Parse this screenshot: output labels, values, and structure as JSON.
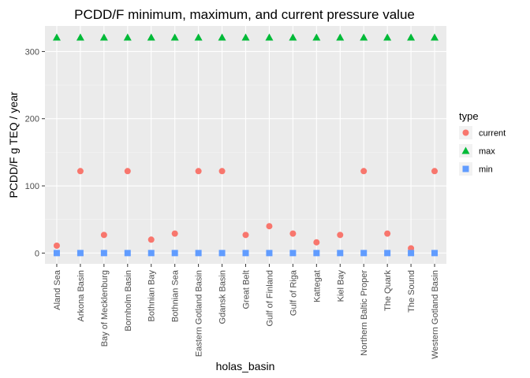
{
  "chart_data": {
    "type": "scatter",
    "title": "PCDD/F minimum, maximum, and current pressure value",
    "xlabel": "holas_basin",
    "ylabel": "PCDD/F g TEQ / year",
    "ylim": [
      -16,
      338
    ],
    "yticks": [
      0,
      100,
      200,
      300
    ],
    "grid": true,
    "legend_title": "type",
    "legend_position": "right",
    "categories": [
      "Aland Sea",
      "Arkona Basin",
      "Bay of Mecklenburg",
      "Bornholm Basin",
      "Bothnian Bay",
      "Bothnian Sea",
      "Eastern Gotland Basin",
      "Gdansk Basin",
      "Great Belt",
      "Gulf of Finland",
      "Gulf of Riga",
      "Kattegat",
      "Kiel Bay",
      "Northern Baltic Proper",
      "The Quark",
      "The Sound",
      "Western Gotland Basin"
    ],
    "series": [
      {
        "name": "current",
        "shape": "circle",
        "color": "#F8766D",
        "values": [
          11,
          122,
          27,
          122,
          20,
          29,
          122,
          122,
          27,
          40,
          29,
          16,
          27,
          122,
          29,
          7,
          122
        ]
      },
      {
        "name": "max",
        "shape": "triangle",
        "color": "#00BA38",
        "values": [
          321,
          321,
          321,
          321,
          321,
          321,
          321,
          321,
          321,
          321,
          321,
          321,
          321,
          321,
          321,
          321,
          321
        ]
      },
      {
        "name": "min",
        "shape": "square",
        "color": "#619CFF",
        "values": [
          0,
          0,
          0,
          0,
          0,
          0,
          0,
          0,
          0,
          0,
          0,
          0,
          0,
          0,
          0,
          0,
          0
        ]
      }
    ]
  }
}
